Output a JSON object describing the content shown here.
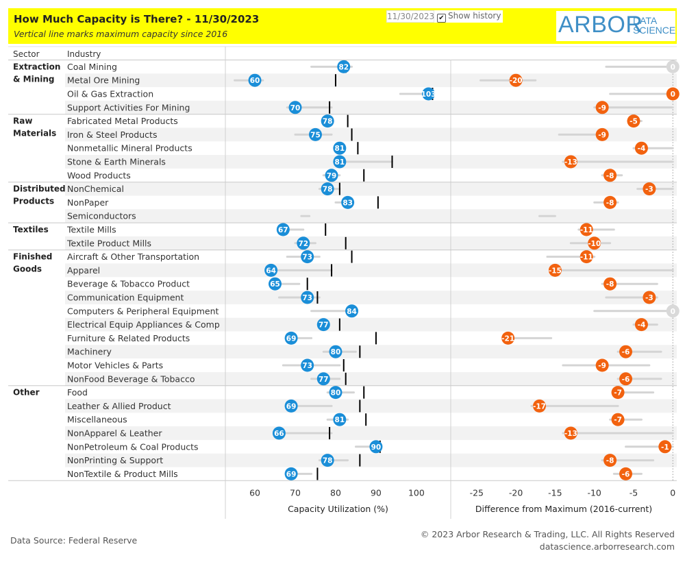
{
  "header": {
    "title": "How Much Capacity is There? - 11/30/2023",
    "subtitle": "Vertical line marks maximum capacity since 2016",
    "date_value": "11/30/2023",
    "show_history_label": "Show history",
    "show_history_checked": "✔",
    "logo_main": "ARBOR",
    "logo_sub": "DATA SCIENCE"
  },
  "columns": {
    "sector": "Sector",
    "industry": "Industry"
  },
  "colors": {
    "util_dot": "#1a8ed8",
    "diff_dot": "#f2620f",
    "zero_dot": "#d9d9d9",
    "max_line": "#000000",
    "history": "#d4d4d4",
    "band": "#f2f2f2"
  },
  "chart_data": [
    {
      "type": "scatter",
      "title": "Capacity Utilization (%)",
      "xlabel": "Capacity Utilization (%)",
      "xlim": [
        52.7,
        108.5
      ],
      "ticks": [
        60,
        70,
        80,
        90,
        100
      ],
      "sectors": [
        "Extraction & Mining",
        "Raw Materials",
        "Distributed Products",
        "Textiles",
        "Finished Goods",
        "Other"
      ],
      "series": [
        {
          "sector": "Extraction & Mining",
          "industry": "Coal Mining",
          "value": 82,
          "max": 82.5,
          "hist": [
            74,
            84
          ]
        },
        {
          "sector": "Extraction & Mining",
          "industry": "Metal Ore Mining",
          "value": 60,
          "max": 80,
          "hist": [
            55,
            62
          ]
        },
        {
          "sector": "Extraction & Mining",
          "industry": "Oil & Gas Extraction",
          "value": 103,
          "max": 104,
          "hist": [
            96,
            104
          ]
        },
        {
          "sector": "Extraction & Mining",
          "industry": "Support Activities For Mining",
          "value": 70,
          "max": 78.5,
          "hist": [
            68,
            79
          ]
        },
        {
          "sector": "Raw Materials",
          "industry": "Fabricated Metal Products",
          "value": 78,
          "max": 83,
          "hist": null
        },
        {
          "sector": "Raw Materials",
          "industry": "Iron & Steel Products",
          "value": 75,
          "max": 84,
          "hist": [
            70,
            79
          ]
        },
        {
          "sector": "Raw Materials",
          "industry": "Nonmetallic Mineral Products",
          "value": 81,
          "max": 85.5,
          "hist": null
        },
        {
          "sector": "Raw Materials",
          "industry": "Stone & Earth Minerals",
          "value": 81,
          "max": 94,
          "hist": [
            80,
            94
          ]
        },
        {
          "sector": "Raw Materials",
          "industry": "Wood Products",
          "value": 79,
          "max": 87,
          "hist": [
            77,
            81
          ]
        },
        {
          "sector": "Distributed Products",
          "industry": "NonChemical",
          "value": 78,
          "max": 81,
          "hist": [
            76,
            81
          ]
        },
        {
          "sector": "Distributed Products",
          "industry": "NonPaper",
          "value": 83,
          "max": 90.5,
          "hist": [
            80,
            84
          ]
        },
        {
          "sector": "Distributed Products",
          "industry": "Semiconductors",
          "value": null,
          "max": null,
          "hist": [
            71.5,
            73.5
          ]
        },
        {
          "sector": "Textiles",
          "industry": "Textile Mills",
          "value": 67,
          "max": 77.5,
          "hist": [
            66,
            72
          ]
        },
        {
          "sector": "Textiles",
          "industry": "Textile Product Mills",
          "value": 72,
          "max": 82.5,
          "hist": [
            70,
            75
          ]
        },
        {
          "sector": "Finished Goods",
          "industry": "Aircraft & Other Transportation",
          "value": 73,
          "max": 84,
          "hist": [
            68,
            76
          ]
        },
        {
          "sector": "Finished Goods",
          "industry": "Apparel",
          "value": 64,
          "max": 79,
          "hist": [
            63,
            79
          ]
        },
        {
          "sector": "Finished Goods",
          "industry": "Beverage & Tobacco Product",
          "value": 65,
          "max": 73,
          "hist": [
            64,
            71
          ]
        },
        {
          "sector": "Finished Goods",
          "industry": "Communication Equipment",
          "value": 73,
          "max": 75.5,
          "hist": [
            66,
            76
          ]
        },
        {
          "sector": "Finished Goods",
          "industry": "Computers & Peripheral Equipment",
          "value": 84,
          "max": 84,
          "hist": [
            74,
            85
          ]
        },
        {
          "sector": "Finished Goods",
          "industry": "Electrical Equip Appliances & Comp",
          "value": 77,
          "max": 81,
          "hist": null
        },
        {
          "sector": "Finished Goods",
          "industry": "Furniture & Related Products",
          "value": 69,
          "max": 90,
          "hist": [
            69,
            74
          ]
        },
        {
          "sector": "Finished Goods",
          "industry": "Machinery",
          "value": 80,
          "max": 86,
          "hist": [
            77,
            85
          ]
        },
        {
          "sector": "Finished Goods",
          "industry": "Motor Vehicles & Parts",
          "value": 73,
          "max": 82,
          "hist": [
            67,
            81
          ]
        },
        {
          "sector": "Finished Goods",
          "industry": "NonFood Beverage & Tobacco",
          "value": 77,
          "max": 82.5,
          "hist": [
            74,
            81
          ]
        },
        {
          "sector": "Other",
          "industry": "Food",
          "value": 80,
          "max": 87,
          "hist": [
            78,
            84.5
          ]
        },
        {
          "sector": "Other",
          "industry": "Leather & Allied Product",
          "value": 69,
          "max": 86,
          "hist": [
            69,
            79
          ]
        },
        {
          "sector": "Other",
          "industry": "Miscellaneous",
          "value": 81,
          "max": 87.5,
          "hist": [
            78,
            83
          ]
        },
        {
          "sector": "Other",
          "industry": "NonApparel & Leather",
          "value": 66,
          "max": 78.5,
          "hist": [
            65,
            79
          ]
        },
        {
          "sector": "Other",
          "industry": "NonPetroleum & Coal Products",
          "value": 90,
          "max": 91,
          "hist": [
            85,
            91
          ]
        },
        {
          "sector": "Other",
          "industry": "NonPrinting & Support",
          "value": 78,
          "max": 86,
          "hist": [
            76,
            83
          ]
        },
        {
          "sector": "Other",
          "industry": "NonTextile & Product Mills",
          "value": 69,
          "max": 75.5,
          "hist": [
            68,
            74
          ]
        }
      ]
    },
    {
      "type": "scatter",
      "title": "Difference from Maximum (2016-current)",
      "xlabel": "Difference from Maximum (2016-current)",
      "xlim": [
        -28.3,
        0.5
      ],
      "ticks": [
        -25,
        -20,
        -15,
        -10,
        -5,
        0
      ],
      "series": [
        {
          "industry": "Coal Mining",
          "value": 0,
          "hist": [
            -8.5,
            0
          ]
        },
        {
          "industry": "Metal Ore Mining",
          "value": -20,
          "hist": [
            -24.5,
            -17.5
          ]
        },
        {
          "industry": "Oil & Gas Extraction",
          "value": 0,
          "hist": [
            -8,
            0
          ]
        },
        {
          "industry": "Support Activities For Mining",
          "value": -9,
          "hist": [
            -10,
            0
          ]
        },
        {
          "industry": "Fabricated Metal Products",
          "value": -5,
          "hist": [
            -5.5,
            -4
          ]
        },
        {
          "industry": "Iron & Steel Products",
          "value": -9,
          "hist": [
            -14.5,
            -9
          ]
        },
        {
          "industry": "Nonmetallic Mineral Products",
          "value": -4,
          "hist": [
            -5,
            0
          ]
        },
        {
          "industry": "Stone & Earth Minerals",
          "value": -13,
          "hist": [
            -14,
            0
          ]
        },
        {
          "industry": "Wood Products",
          "value": -8,
          "hist": [
            -9,
            -6.5
          ]
        },
        {
          "industry": "NonChemical",
          "value": -3,
          "hist": [
            -4.5,
            0
          ]
        },
        {
          "industry": "NonPaper",
          "value": -8,
          "hist": [
            -10,
            -7
          ]
        },
        {
          "industry": "Semiconductors",
          "value": null,
          "hist": [
            -17,
            -15
          ]
        },
        {
          "industry": "Textile Mills",
          "value": -11,
          "hist": [
            -12,
            -7.5
          ]
        },
        {
          "industry": "Textile Product Mills",
          "value": -10,
          "hist": [
            -13,
            -8
          ]
        },
        {
          "industry": "Aircraft & Other Transportation",
          "value": -11,
          "hist": [
            -16,
            -10
          ]
        },
        {
          "industry": "Apparel",
          "value": -15,
          "hist": [
            -15,
            0
          ]
        },
        {
          "industry": "Beverage & Tobacco Product",
          "value": -8,
          "hist": [
            -9,
            -2
          ]
        },
        {
          "industry": "Communication Equipment",
          "value": -3,
          "hist": [
            -8.5,
            -2
          ]
        },
        {
          "industry": "Computers & Peripheral Equipment",
          "value": 0,
          "hist": [
            -10,
            0
          ]
        },
        {
          "industry": "Electrical Equip Appliances & Comp",
          "value": -4,
          "hist": [
            -5,
            -2
          ]
        },
        {
          "industry": "Furniture & Related Products",
          "value": -21,
          "hist": [
            -21,
            -15.5
          ]
        },
        {
          "industry": "Machinery",
          "value": -6,
          "hist": [
            -7,
            -1.5
          ]
        },
        {
          "industry": "Motor Vehicles & Parts",
          "value": -9,
          "hist": [
            -14,
            -3
          ]
        },
        {
          "industry": "NonFood Beverage & Tobacco",
          "value": -6,
          "hist": [
            -7,
            -1.5
          ]
        },
        {
          "industry": "Food",
          "value": -7,
          "hist": [
            -7.5,
            -2.5
          ]
        },
        {
          "industry": "Leather & Allied Product",
          "value": -17,
          "hist": [
            -18,
            -7
          ]
        },
        {
          "industry": "Miscellaneous",
          "value": -7,
          "hist": [
            -8,
            -4
          ]
        },
        {
          "industry": "NonApparel & Leather",
          "value": -13,
          "hist": [
            -14,
            0
          ]
        },
        {
          "industry": "NonPetroleum & Coal Products",
          "value": -1,
          "hist": [
            -6,
            0
          ]
        },
        {
          "industry": "NonPrinting & Support",
          "value": -8,
          "hist": [
            -9,
            -2.5
          ]
        },
        {
          "industry": "NonTextile & Product Mills",
          "value": -6,
          "hist": [
            -7.5,
            -4
          ]
        }
      ]
    }
  ],
  "footer": {
    "source": "Data Source: Federal Reserve",
    "copyright": "© 2023 Arbor Research & Trading, LLC. All Rights Reserved",
    "website": "datascience.arborresearch.com"
  }
}
